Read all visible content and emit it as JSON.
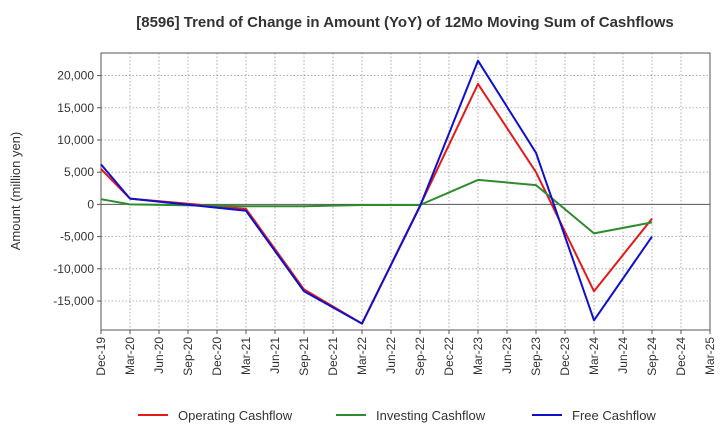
{
  "chart_data": {
    "type": "line",
    "title": "[8596]  Trend of Change in Amount (YoY) of 12Mo Moving Sum of Cashflows",
    "xlabel": "",
    "ylabel": "Amount (million yen)",
    "ylim": [
      -19500,
      23500
    ],
    "yticks": [
      -15000,
      -10000,
      -5000,
      0,
      5000,
      10000,
      15000,
      20000
    ],
    "ytick_labels": [
      "-15,000",
      "-10,000",
      "-5,000",
      "0",
      "5,000",
      "10,000",
      "15,000",
      "20,000"
    ],
    "categories": [
      "Dec-19",
      "Mar-20",
      "Jun-20",
      "Sep-20",
      "Dec-20",
      "Mar-21",
      "Jun-21",
      "Sep-21",
      "Dec-21",
      "Mar-22",
      "Jun-22",
      "Sep-22",
      "Dec-22",
      "Mar-23",
      "Jun-23",
      "Sep-23",
      "Dec-23",
      "Mar-24",
      "Jun-24",
      "Sep-24",
      "Dec-24",
      "Mar-25"
    ],
    "grid": true,
    "legend_position": "bottom",
    "series": [
      {
        "name": "Operating Cashflow",
        "color": "#e31a1c",
        "values": [
          5500,
          900,
          null,
          null,
          null,
          -700,
          null,
          -13200,
          null,
          -18500,
          null,
          -200,
          null,
          18700,
          null,
          5000,
          null,
          -13500,
          null,
          -2200,
          null,
          null
        ]
      },
      {
        "name": "Investing Cashflow",
        "color": "#2e8b2e",
        "values": [
          800,
          0,
          null,
          null,
          null,
          -300,
          null,
          -300,
          null,
          -100,
          null,
          -100,
          null,
          3800,
          null,
          3000,
          null,
          -4500,
          null,
          -2800,
          null,
          null
        ]
      },
      {
        "name": "Free Cashflow",
        "color": "#1010cc",
        "values": [
          6200,
          900,
          null,
          null,
          null,
          -1000,
          null,
          -13500,
          null,
          -18500,
          null,
          -300,
          null,
          22300,
          null,
          8000,
          null,
          -18000,
          null,
          -5000,
          null,
          null
        ]
      }
    ]
  }
}
